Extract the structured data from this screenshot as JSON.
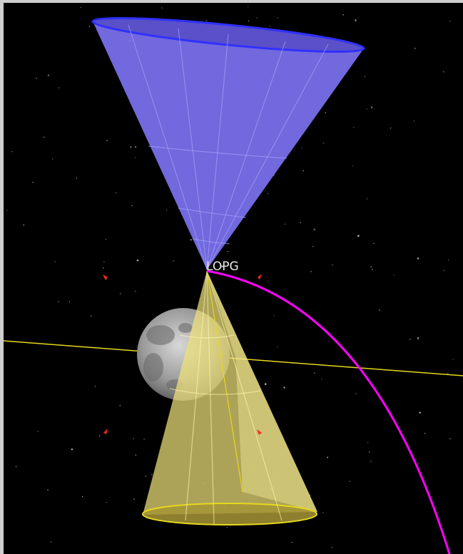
{
  "label": "LOPG"
}
